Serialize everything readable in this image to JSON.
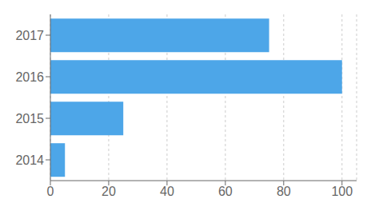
{
  "chart_data": {
    "type": "bar",
    "orientation": "horizontal",
    "categories": [
      "2017",
      "2016",
      "2015",
      "2014"
    ],
    "values": [
      75,
      100,
      25,
      5
    ],
    "color": "#4DA6E8",
    "xlim": [
      0,
      105
    ],
    "xticks": [
      0,
      20,
      40,
      60,
      80,
      100
    ],
    "grid": true
  }
}
